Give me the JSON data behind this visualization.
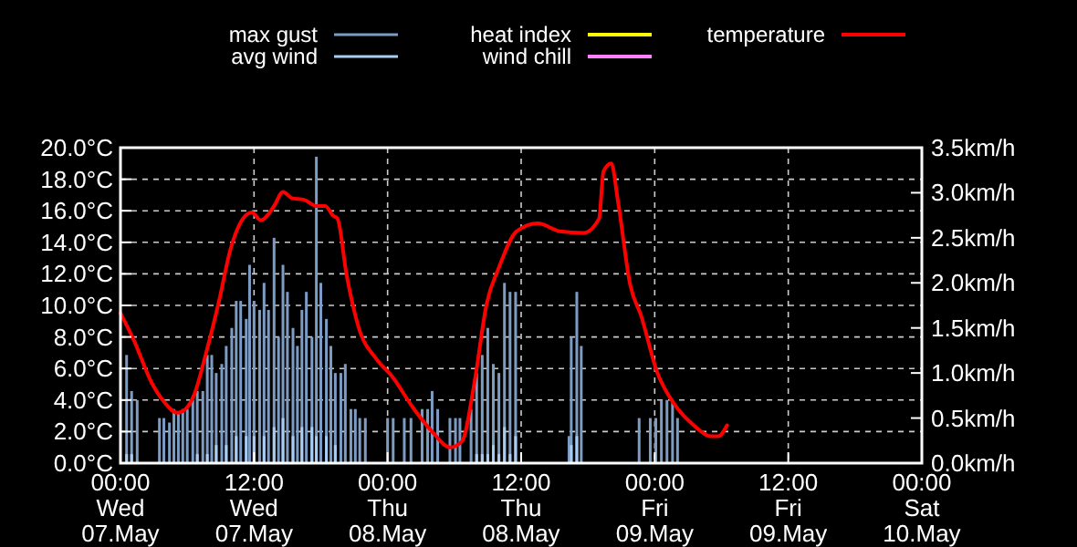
{
  "chart_data": {
    "type": "line",
    "xlim": [
      "--05-07T00:00",
      "--05-10T00:00"
    ],
    "xticks": [
      {
        "value": "--05-07T00:00",
        "label": "00:00\nWed\n07.May"
      },
      {
        "value": "--05-07T12:00",
        "label": "12:00\nWed\n07.May"
      },
      {
        "value": "--05-08T00:00",
        "label": "00:00\nThu\n08.May"
      },
      {
        "value": "--05-08T12:00",
        "label": "12:00\nThu\n08.May"
      },
      {
        "value": "--05-09T00:00",
        "label": "00:00\nFri\n09.May"
      },
      {
        "value": "--05-09T12:00",
        "label": "12:00\nFri\n09.May"
      },
      {
        "value": "--05-10T00:00",
        "label": "00:00\nSat\n10.May"
      }
    ],
    "ylim": [
      0,
      20
    ],
    "yticks": [
      {
        "value": 0,
        "label": "0.0°C"
      },
      {
        "value": 2,
        "label": "2.0°C"
      },
      {
        "value": 4,
        "label": "4.0°C"
      },
      {
        "value": 6,
        "label": "6.0°C"
      },
      {
        "value": 8,
        "label": "8.0°C"
      },
      {
        "value": 10,
        "label": "10.0°C"
      },
      {
        "value": 12,
        "label": "12.0°C"
      },
      {
        "value": 14,
        "label": "14.0°C"
      },
      {
        "value": 16,
        "label": "16.0°C"
      },
      {
        "value": 18,
        "label": "18.0°C"
      },
      {
        "value": 20,
        "label": "20.0°C"
      }
    ],
    "y2lim": [
      0,
      3.5
    ],
    "y2ticks": [
      {
        "value": 0,
        "label": "0.0km/h"
      },
      {
        "value": 0.5,
        "label": "0.5km/h"
      },
      {
        "value": 1,
        "label": "1.0km/h"
      },
      {
        "value": 1.5,
        "label": "1.5km/h"
      },
      {
        "value": 2,
        "label": "2.0km/h"
      },
      {
        "value": 2.5,
        "label": "2.5km/h"
      },
      {
        "value": 3,
        "label": "3.0km/h"
      },
      {
        "value": 3.5,
        "label": "3.5km/h"
      }
    ],
    "grid": true,
    "legend": "top",
    "series": [
      {
        "name": "max gust",
        "type": "bar",
        "axis": "y2",
        "color": "#7d9cc4",
        "x": [
          "--05-07T00:33",
          "--05-07T01:00",
          "--05-07T01:30",
          "--05-07T03:30",
          "--05-07T03:54",
          "--05-07T04:24",
          "--05-07T04:48",
          "--05-07T05:12",
          "--05-07T05:36",
          "--05-07T06:00",
          "--05-07T06:30",
          "--05-07T06:54",
          "--05-07T07:24",
          "--05-07T07:48",
          "--05-07T08:12",
          "--05-07T08:36",
          "--05-07T09:06",
          "--05-07T09:30",
          "--05-07T10:00",
          "--05-07T10:24",
          "--05-07T10:48",
          "--05-07T11:18",
          "--05-07T11:36",
          "--05-07T12:00",
          "--05-07T12:30",
          "--05-07T12:54",
          "--05-07T13:18",
          "--05-07T13:48",
          "--05-07T14:12",
          "--05-07T14:36",
          "--05-07T15:00",
          "--05-07T15:30",
          "--05-07T15:54",
          "--05-07T16:18",
          "--05-07T16:42",
          "--05-07T17:12",
          "--05-07T17:36",
          "--05-07T18:00",
          "--05-07T18:30",
          "--05-07T18:54",
          "--05-07T19:18",
          "--05-07T19:48",
          "--05-07T20:12",
          "--05-07T20:42",
          "--05-07T21:06",
          "--05-07T21:30",
          "--05-07T22:00",
          "--05-08T00:00",
          "--05-08T00:30",
          "--05-08T01:30",
          "--05-08T02:06",
          "--05-08T03:06",
          "--05-08T03:36",
          "--05-08T04:00",
          "--05-08T04:30",
          "--05-08T05:36",
          "--05-08T06:06",
          "--05-08T06:30",
          "--05-08T07:30",
          "--05-08T08:00",
          "--05-08T08:30",
          "--05-08T09:00",
          "--05-08T09:30",
          "--05-08T10:00",
          "--05-08T10:30",
          "--05-08T11:00",
          "--05-08T11:30",
          "--05-08T16:18",
          "--05-08T16:30",
          "--05-08T17:00",
          "--05-08T17:24",
          "--05-08T22:36",
          "--05-08T23:36",
          "--05-09T00:06",
          "--05-09T00:36",
          "--05-09T01:06",
          "--05-09T01:36",
          "--05-09T02:03"
        ],
        "values": [
          1.2,
          0.8,
          0.7,
          0.5,
          0.5,
          0.45,
          0.6,
          0.55,
          0.6,
          0.6,
          0.7,
          0.8,
          0.8,
          1.2,
          1.2,
          1.0,
          1.1,
          1.3,
          1.5,
          1.8,
          1.8,
          1.6,
          2.2,
          1.8,
          1.7,
          2.0,
          1.7,
          2.5,
          1.4,
          2.2,
          1.9,
          1.5,
          1.3,
          1.7,
          1.9,
          1.4,
          3.4,
          2.0,
          1.6,
          1.3,
          1.0,
          1.0,
          1.1,
          0.6,
          0.6,
          0.5,
          0.5,
          0.5,
          0.5,
          0.5,
          0.5,
          0.6,
          0.6,
          0.8,
          0.6,
          0.5,
          0.5,
          0.5,
          0.6,
          1.0,
          1.2,
          1.5,
          1.1,
          1.0,
          2.0,
          1.9,
          1.9,
          0.3,
          1.4,
          1.9,
          1.3,
          0.5,
          0.5,
          0.5,
          0.7,
          0.7,
          0.7,
          0.5
        ]
      },
      {
        "name": "avg wind",
        "type": "bar",
        "axis": "y2",
        "color": "#a9cdf2",
        "x": [
          "--05-07T00:33",
          "--05-07T01:00",
          "--05-07T06:54",
          "--05-07T07:48",
          "--05-07T08:36",
          "--05-07T09:30",
          "--05-07T10:24",
          "--05-07T11:18",
          "--05-07T12:00",
          "--05-07T12:54",
          "--05-07T13:48",
          "--05-07T14:36",
          "--05-07T15:30",
          "--05-07T16:18",
          "--05-07T17:12",
          "--05-07T17:36",
          "--05-07T18:30",
          "--05-07T19:18",
          "--05-08T08:00",
          "--05-08T08:30",
          "--05-08T09:00",
          "--05-08T09:30",
          "--05-08T10:00",
          "--05-08T10:30",
          "--05-08T11:00",
          "--05-08T11:30",
          "--05-08T16:30",
          "--05-08T17:00"
        ],
        "values": [
          0.1,
          0.1,
          0.1,
          0.1,
          0.2,
          0.2,
          0.3,
          0.3,
          0.3,
          0.3,
          0.4,
          0.5,
          0.3,
          0.4,
          0.4,
          0.3,
          0.3,
          0.2,
          0.1,
          0.1,
          0.1,
          0.2,
          0.1,
          0.4,
          0.1,
          0.3,
          0.2,
          0.3
        ]
      },
      {
        "name": "heat index",
        "color": "#ffff00"
      },
      {
        "name": "wind chill",
        "color": "#ff80ff"
      },
      {
        "name": "temperature",
        "color": "#ff0000",
        "x": [
          "--05-07T00:00",
          "--05-07T01:12",
          "--05-07T02:48",
          "--05-07T03:54",
          "--05-07T05:06",
          "--05-07T05:48",
          "--05-07T06:36",
          "--05-07T07:42",
          "--05-07T08:48",
          "--05-07T09:54",
          "--05-07T11:00",
          "--05-07T11:48",
          "--05-07T12:36",
          "--05-07T13:48",
          "--05-07T14:36",
          "--05-07T15:24",
          "--05-07T16:30",
          "--05-07T17:36",
          "--05-07T18:24",
          "--05-07T19:06",
          "--05-07T19:30",
          "--05-07T20:18",
          "--05-07T21:24",
          "--05-07T23:00",
          "--05-08T00:24",
          "--05-08T02:18",
          "--05-08T04:00",
          "--05-08T05:36",
          "--05-08T06:42",
          "--05-08T07:48",
          "--05-08T08:54",
          "--05-08T10:00",
          "--05-08T11:36",
          "--05-08T13:30",
          "--05-08T15:30",
          "--05-08T17:36",
          "--05-08T19:00",
          "--05-08T19:24",
          "--05-08T20:06",
          "--05-08T20:42",
          "--05-08T21:48",
          "--05-08T22:48",
          "--05-09T00:12",
          "--05-09T01:48",
          "--05-09T03:30",
          "--05-09T05:06",
          "--05-09T05:42",
          "--05-09T06:30"
        ],
        "values": [
          9.5,
          7.8,
          5.1,
          3.9,
          3.2,
          3.4,
          4.3,
          7.0,
          10.1,
          13.6,
          15.5,
          15.9,
          15.4,
          16.3,
          17.2,
          16.8,
          16.7,
          16.3,
          16.3,
          15.7,
          15.5,
          12.0,
          8.6,
          6.6,
          5.5,
          3.5,
          2.0,
          1.0,
          1.4,
          5.1,
          10.1,
          12.4,
          14.7,
          15.2,
          14.7,
          14.6,
          15.5,
          18.5,
          19.0,
          16.6,
          11.3,
          9.3,
          5.8,
          3.7,
          2.4,
          1.7,
          1.7,
          2.4
        ]
      }
    ]
  }
}
